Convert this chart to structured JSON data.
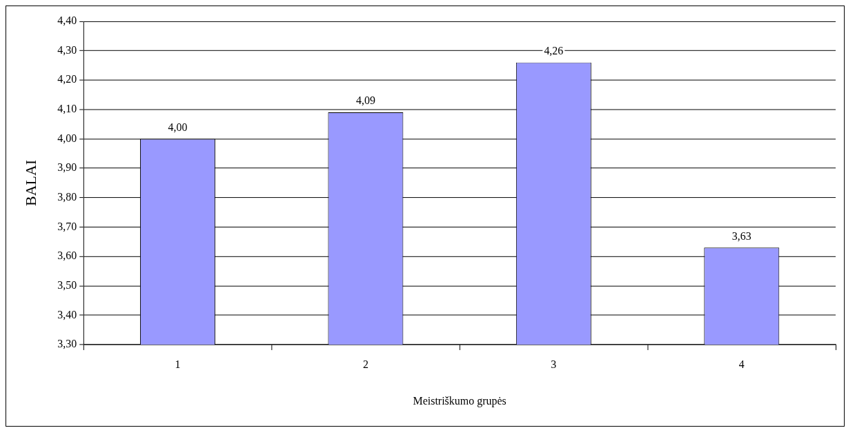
{
  "chart_data": {
    "type": "bar",
    "xlabel": "Meistriškumo grupės",
    "ylabel": "BALAI",
    "categories": [
      "1",
      "2",
      "3",
      "4"
    ],
    "values": [
      4.0,
      4.09,
      4.26,
      3.63
    ],
    "color": "#9999ff",
    "value_labels": [
      "4,00",
      "4,09",
      "4,26",
      "3,63"
    ],
    "ylim": [
      3.3,
      4.4
    ],
    "yticks": [
      {
        "value": 3.3,
        "label": "3,30"
      },
      {
        "value": 3.4,
        "label": "3,40"
      },
      {
        "value": 3.5,
        "label": "3,50"
      },
      {
        "value": 3.6,
        "label": "3,60"
      },
      {
        "value": 3.7,
        "label": "3,70"
      },
      {
        "value": 3.8,
        "label": "3,80"
      },
      {
        "value": 3.9,
        "label": "3,90"
      },
      {
        "value": 4.0,
        "label": "4,00"
      },
      {
        "value": 4.1,
        "label": "4,10"
      },
      {
        "value": 4.2,
        "label": "4,20"
      },
      {
        "value": 4.3,
        "label": "4,30"
      },
      {
        "value": 4.4,
        "label": "4,40"
      }
    ],
    "grid": "y",
    "legend": false
  }
}
